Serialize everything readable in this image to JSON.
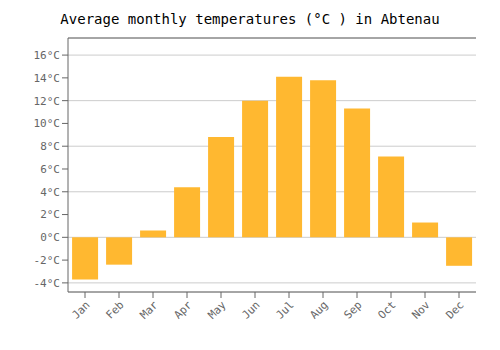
{
  "chart_data": {
    "type": "bar",
    "title": "Average monthly temperatures (°C ) in Abtenau",
    "categories": [
      "Jan",
      "Feb",
      "Mar",
      "Apr",
      "May",
      "Jun",
      "Jul",
      "Aug",
      "Sep",
      "Oct",
      "Nov",
      "Dec"
    ],
    "values": [
      -3.7,
      -2.4,
      0.6,
      4.4,
      8.8,
      12.0,
      14.1,
      13.8,
      11.3,
      7.1,
      1.3,
      -2.5
    ],
    "color": "#FFB830",
    "ylim": [
      -4.8,
      17.5
    ],
    "yticks": [
      {
        "value": -4,
        "label": "-4°C"
      },
      {
        "value": -2,
        "label": "-2°C"
      },
      {
        "value": 0,
        "label": "0°C"
      },
      {
        "value": 2,
        "label": "2°C"
      },
      {
        "value": 4,
        "label": "4°C"
      },
      {
        "value": 6,
        "label": "6°C"
      },
      {
        "value": 8,
        "label": "8°C"
      },
      {
        "value": 10,
        "label": "10°C"
      },
      {
        "value": 12,
        "label": "12°C"
      },
      {
        "value": 14,
        "label": "14°C"
      },
      {
        "value": 16,
        "label": "16°C"
      }
    ],
    "grid": true
  }
}
